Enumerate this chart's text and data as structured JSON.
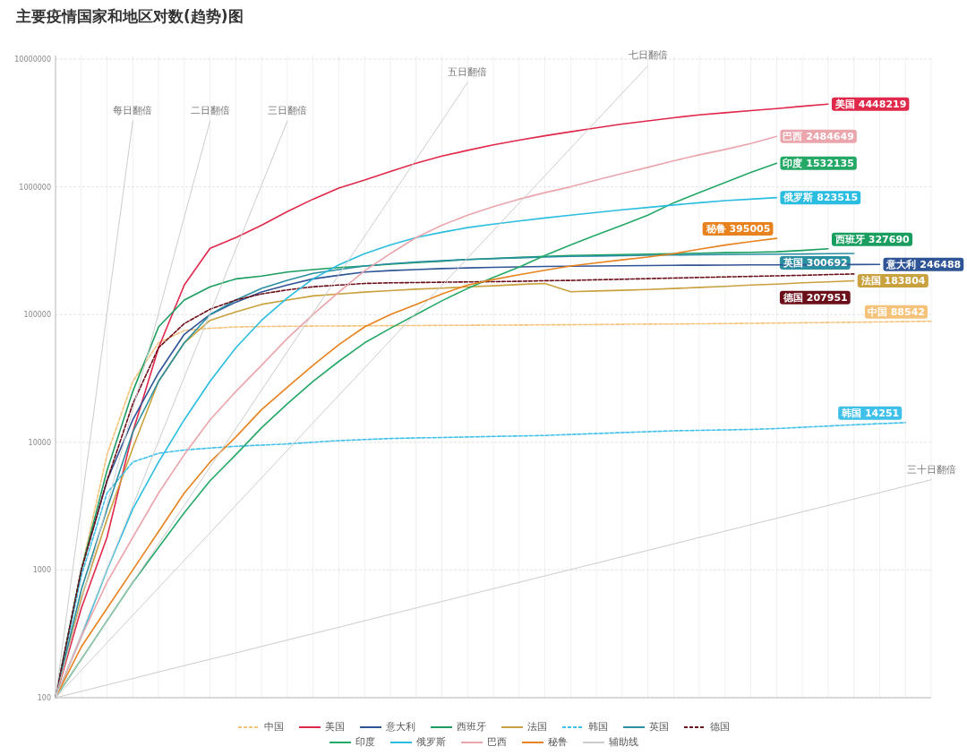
{
  "chart_data": {
    "type": "line",
    "title": "主要疫情国家和地区对数(趋势)图",
    "categories": [
      null,
      null,
      null,
      null,
      null,
      null,
      null,
      null,
      null,
      null,
      null,
      null,
      null,
      null,
      null,
      null,
      null,
      null,
      null,
      null,
      null,
      null,
      null,
      null,
      null,
      null,
      null,
      null,
      null,
      null,
      null,
      null,
      null,
      null,
      null
    ],
    "ylim": [
      100,
      10000000
    ],
    "yticks": [
      100,
      1000,
      10000,
      100000,
      1000000,
      10000000
    ],
    "log": "y",
    "grid": true,
    "legend": "bottom",
    "tick_labels": "y",
    "series": [
      {
        "name": "中国",
        "color": "#f5c27a",
        "line_style": "dashed",
        "values": [
          100,
          1000,
          8000,
          30000,
          60000,
          75000,
          78000,
          80000,
          80500,
          81000,
          81200,
          81400,
          81600,
          81800,
          82000,
          82200,
          82400,
          82600,
          82800,
          83000,
          83200,
          83500,
          83800,
          84100,
          84400,
          84700,
          85000,
          85400,
          85800,
          86200,
          86600,
          87000,
          87500,
          88000,
          88542
        ],
        "value_labels": [
          null,
          null,
          null,
          null,
          null,
          null,
          null,
          null,
          null,
          null,
          null,
          null,
          null,
          null,
          null,
          null,
          null,
          null,
          null,
          null,
          null,
          null,
          null,
          null,
          null,
          null,
          null,
          null,
          null,
          null,
          null,
          null,
          null,
          null,
          "中国 88542"
        ]
      },
      {
        "name": "美国",
        "color": "#e0284b",
        "values": [
          100,
          500,
          1800,
          12000,
          55000,
          170000,
          330000,
          400000,
          500000,
          640000,
          800000,
          980000,
          1130000,
          1320000,
          1530000,
          1740000,
          1930000,
          2130000,
          2320000,
          2510000,
          2700000,
          2900000,
          3100000,
          3280000,
          3470000,
          3660000,
          3800000,
          3950000,
          4100000,
          4280000,
          4448219,
          null,
          null,
          null,
          null
        ],
        "value_labels": [
          null,
          null,
          null,
          null,
          null,
          null,
          null,
          null,
          null,
          null,
          null,
          null,
          null,
          null,
          null,
          null,
          null,
          null,
          null,
          null,
          null,
          null,
          null,
          null,
          null,
          null,
          null,
          null,
          null,
          null,
          "美国 4448219",
          null,
          null,
          null,
          null
        ]
      },
      {
        "name": "意大利",
        "color": "#2f5597",
        "values": [
          100,
          1000,
          5000,
          15000,
          35000,
          70000,
          100000,
          125000,
          150000,
          170000,
          190000,
          203000,
          215000,
          221000,
          225000,
          229000,
          232000,
          234000,
          236000,
          238000,
          239000,
          240000,
          241000,
          242000,
          243000,
          243500,
          244000,
          244500,
          245000,
          245500,
          246000,
          246200,
          246488,
          null,
          null
        ],
        "value_labels": [
          null,
          null,
          null,
          null,
          null,
          null,
          null,
          null,
          null,
          null,
          null,
          null,
          null,
          null,
          null,
          null,
          null,
          null,
          null,
          null,
          null,
          null,
          null,
          null,
          null,
          null,
          null,
          null,
          null,
          null,
          null,
          null,
          "意大利 246488",
          null,
          null
        ]
      },
      {
        "name": "西班牙",
        "color": "#1a9e60",
        "values": [
          100,
          1000,
          6000,
          25000,
          80000,
          130000,
          165000,
          190000,
          200000,
          215000,
          225000,
          233000,
          240000,
          248000,
          255000,
          262000,
          270000,
          275000,
          280000,
          285000,
          290000,
          292000,
          295000,
          297000,
          300000,
          302000,
          305000,
          307000,
          310000,
          318000,
          327690,
          null,
          null,
          null,
          null
        ],
        "value_labels": [
          null,
          null,
          null,
          null,
          null,
          null,
          null,
          null,
          null,
          null,
          null,
          null,
          null,
          null,
          null,
          null,
          null,
          null,
          null,
          null,
          null,
          null,
          null,
          null,
          null,
          null,
          null,
          null,
          null,
          null,
          "西班牙 327690",
          null,
          null,
          null,
          null
        ]
      },
      {
        "name": "法国",
        "color": "#c9a13e",
        "values": [
          100,
          600,
          2500,
          9000,
          30000,
          60000,
          90000,
          105000,
          120000,
          130000,
          140000,
          145000,
          150000,
          154000,
          158000,
          161000,
          165000,
          168000,
          172000,
          175000,
          151000,
          153000,
          155000,
          157000,
          160000,
          163000,
          166000,
          170000,
          173000,
          177000,
          180000,
          183804,
          null,
          null,
          null
        ],
        "value_labels": [
          null,
          null,
          null,
          null,
          null,
          null,
          null,
          null,
          null,
          null,
          null,
          null,
          null,
          null,
          null,
          null,
          null,
          null,
          null,
          null,
          null,
          null,
          null,
          null,
          null,
          null,
          null,
          null,
          null,
          null,
          null,
          "法国 183804",
          null,
          null,
          null
        ]
      },
      {
        "name": "韩国",
        "color": "#3fc0e8",
        "line_style": "dashed",
        "values": [
          100,
          900,
          4000,
          7000,
          8200,
          8700,
          9000,
          9300,
          9500,
          9700,
          10000,
          10300,
          10500,
          10700,
          10800,
          10900,
          11000,
          11100,
          11200,
          11300,
          11500,
          11700,
          11900,
          12100,
          12300,
          12400,
          12500,
          12600,
          12800,
          13100,
          13400,
          13700,
          14000,
          14251,
          null
        ],
        "value_labels": [
          null,
          null,
          null,
          null,
          null,
          null,
          null,
          null,
          null,
          null,
          null,
          null,
          null,
          null,
          null,
          null,
          null,
          null,
          null,
          null,
          null,
          null,
          null,
          null,
          null,
          null,
          null,
          null,
          null,
          null,
          null,
          null,
          null,
          "韩国 14251",
          null
        ]
      },
      {
        "name": "英国",
        "color": "#2a8fa0",
        "values": [
          100,
          700,
          3000,
          12000,
          30000,
          60000,
          100000,
          130000,
          160000,
          185000,
          210000,
          225000,
          240000,
          250000,
          258000,
          264000,
          270000,
          274000,
          278000,
          282000,
          285000,
          287000,
          289000,
          291000,
          292000,
          294000,
          295000,
          296000,
          297000,
          298000,
          299500,
          300692,
          null,
          null,
          null
        ],
        "value_labels": [
          null,
          null,
          null,
          null,
          null,
          null,
          null,
          null,
          null,
          null,
          null,
          null,
          null,
          null,
          null,
          null,
          null,
          null,
          null,
          null,
          null,
          null,
          null,
          null,
          null,
          null,
          null,
          null,
          null,
          null,
          null,
          "英国 300692",
          null,
          null,
          null
        ]
      },
      {
        "name": "德国",
        "color": "#6b0f1a",
        "line_style": "dashed",
        "values": [
          100,
          1000,
          5000,
          20000,
          55000,
          85000,
          110000,
          130000,
          145000,
          156000,
          165000,
          170000,
          175000,
          177000,
          178000,
          179000,
          180000,
          181000,
          182000,
          184000,
          185000,
          187000,
          189000,
          191000,
          193000,
          195000,
          197000,
          199000,
          201000,
          203000,
          205500,
          207951,
          null,
          null,
          null
        ],
        "value_labels": [
          null,
          null,
          null,
          null,
          null,
          null,
          null,
          null,
          null,
          null,
          null,
          null,
          null,
          null,
          null,
          null,
          null,
          null,
          null,
          null,
          null,
          null,
          null,
          null,
          null,
          null,
          null,
          null,
          null,
          null,
          null,
          "德国 207951",
          null,
          null,
          null
        ]
      },
      {
        "name": "印度",
        "color": "#24a866",
        "values": [
          100,
          200,
          400,
          800,
          1500,
          2800,
          5000,
          8000,
          13000,
          20000,
          30000,
          43000,
          60000,
          78000,
          100000,
          128000,
          160000,
          195000,
          235000,
          290000,
          350000,
          420000,
          500000,
          600000,
          750000,
          900000,
          1080000,
          1300000,
          1532135,
          null,
          null,
          null,
          null,
          null,
          null
        ],
        "value_labels": [
          null,
          null,
          null,
          null,
          null,
          null,
          null,
          null,
          null,
          null,
          null,
          null,
          null,
          null,
          null,
          null,
          null,
          null,
          null,
          null,
          null,
          null,
          null,
          null,
          null,
          null,
          null,
          null,
          "印度 1532135",
          null,
          null,
          null,
          null,
          null,
          null
        ]
      },
      {
        "name": "俄罗斯",
        "color": "#2bbde0",
        "values": [
          100,
          300,
          1000,
          3000,
          7000,
          15000,
          30000,
          55000,
          90000,
          135000,
          190000,
          245000,
          300000,
          350000,
          400000,
          440000,
          480000,
          510000,
          540000,
          570000,
          600000,
          630000,
          660000,
          690000,
          720000,
          750000,
          780000,
          800000,
          823515,
          null,
          null,
          null,
          null,
          null,
          null
        ],
        "value_labels": [
          null,
          null,
          null,
          null,
          null,
          null,
          null,
          null,
          null,
          null,
          null,
          null,
          null,
          null,
          null,
          null,
          null,
          null,
          null,
          null,
          null,
          null,
          null,
          null,
          null,
          null,
          null,
          null,
          "俄罗斯 823515",
          null,
          null,
          null,
          null,
          null,
          null
        ]
      },
      {
        "name": "巴西",
        "color": "#eba5ad",
        "values": [
          100,
          300,
          800,
          1800,
          4000,
          8000,
          15000,
          25000,
          40000,
          65000,
          100000,
          150000,
          220000,
          300000,
          400000,
          500000,
          600000,
          700000,
          800000,
          900000,
          1000000,
          1130000,
          1270000,
          1420000,
          1600000,
          1780000,
          1960000,
          2180000,
          2484649,
          null,
          null,
          null,
          null,
          null,
          null
        ],
        "value_labels": [
          null,
          null,
          null,
          null,
          null,
          null,
          null,
          null,
          null,
          null,
          null,
          null,
          null,
          null,
          null,
          null,
          null,
          null,
          null,
          null,
          null,
          null,
          null,
          null,
          null,
          null,
          null,
          null,
          "巴西 2484649",
          null,
          null,
          null,
          null,
          null,
          null
        ]
      },
      {
        "name": "秘鲁",
        "color": "#e8821e",
        "values": [
          100,
          250,
          500,
          1000,
          2000,
          4000,
          7000,
          11000,
          18000,
          27000,
          40000,
          58000,
          80000,
          100000,
          120000,
          145000,
          170000,
          188000,
          205000,
          222000,
          240000,
          254000,
          268000,
          282000,
          300000,
          325000,
          350000,
          372000,
          395005,
          null,
          null,
          null,
          null,
          null,
          null
        ],
        "value_labels": [
          null,
          null,
          null,
          null,
          null,
          null,
          null,
          null,
          null,
          null,
          null,
          null,
          null,
          null,
          null,
          null,
          null,
          null,
          null,
          null,
          null,
          null,
          null,
          null,
          null,
          null,
          null,
          null,
          "秘鲁 395005",
          null,
          null,
          null,
          null,
          null,
          null
        ]
      },
      {
        "name": "辅助线",
        "line_style": "solid",
        "color": "#cccccc",
        "values": [
          100,
          3200,
          102400,
          3276800,
          null,
          null,
          null,
          null,
          null,
          null,
          null,
          null,
          null,
          null,
          null,
          null,
          null,
          null,
          null,
          null,
          null,
          null,
          null,
          null,
          null,
          null,
          null,
          null,
          null,
          null,
          null,
          null,
          null,
          null,
          null
        ],
        "value_labels": [
          null,
          null,
          null,
          "每日翻倍",
          null,
          null,
          null,
          null,
          null,
          null,
          null,
          null,
          null,
          null,
          null,
          null,
          null,
          null,
          null,
          null,
          null,
          null,
          null,
          null,
          null,
          null,
          null,
          null,
          null,
          null,
          null,
          null,
          null,
          null,
          null
        ]
      },
      {
        "line_style": "solid",
        "color": "#cccccc",
        "values": [
          100,
          566,
          3200,
          18100,
          102400,
          579000,
          3276800,
          null,
          null,
          null,
          null,
          null,
          null,
          null,
          null,
          null,
          null,
          null,
          null,
          null,
          null,
          null,
          null,
          null,
          null,
          null,
          null,
          null,
          null,
          null,
          null,
          null,
          null,
          null,
          null
        ],
        "value_labels": [
          null,
          null,
          null,
          null,
          null,
          null,
          "二日翻倍",
          null,
          null,
          null,
          null,
          null,
          null,
          null,
          null,
          null,
          null,
          null,
          null,
          null,
          null,
          null,
          null,
          null,
          null,
          null,
          null,
          null,
          null,
          null,
          null,
          null,
          null,
          null,
          null
        ]
      },
      {
        "line_style": "solid",
        "color": "#cccccc",
        "values": [
          100,
          317,
          1010,
          3200,
          10200,
          32300,
          102400,
          325000,
          1030000,
          3276800,
          null,
          null,
          null,
          null,
          null,
          null,
          null,
          null,
          null,
          null,
          null,
          null,
          null,
          null,
          null,
          null,
          null,
          null,
          null,
          null,
          null,
          null,
          null,
          null,
          null
        ],
        "value_labels": [
          null,
          null,
          null,
          null,
          null,
          null,
          null,
          null,
          null,
          "三日翻倍",
          null,
          null,
          null,
          null,
          null,
          null,
          null,
          null,
          null,
          null,
          null,
          null,
          null,
          null,
          null,
          null,
          null,
          null,
          null,
          null,
          null,
          null,
          null,
          null,
          null
        ]
      },
      {
        "line_style": "solid",
        "color": "#cccccc",
        "values": [
          100,
          200,
          400,
          800,
          1600,
          3200,
          6400,
          12800,
          25600,
          51200,
          102400,
          204800,
          409600,
          819200,
          1638400,
          3276800,
          6553600,
          null,
          null,
          null,
          null,
          null,
          null,
          null,
          null,
          null,
          null,
          null,
          null,
          null,
          null,
          null,
          null,
          null,
          null
        ],
        "value_labels": [
          null,
          null,
          null,
          null,
          null,
          null,
          null,
          null,
          null,
          null,
          null,
          null,
          null,
          null,
          null,
          null,
          "五日翻倍",
          null,
          null,
          null,
          null,
          null,
          null,
          null,
          null,
          null,
          null,
          null,
          null,
          null,
          null,
          null,
          null,
          null,
          null
        ]
      },
      {
        "line_style": "solid",
        "color": "#cccccc",
        "values": [
          100,
          164,
          269,
          442,
          725,
          1190,
          1950,
          3210,
          5260,
          8630,
          14200,
          23300,
          38200,
          62600,
          103000,
          169000,
          277000,
          454000,
          745000,
          1220000,
          2010000,
          3290000,
          5400000,
          8860000,
          null,
          null,
          null,
          null,
          null,
          null,
          null,
          null,
          null,
          null,
          null
        ],
        "value_labels": [
          null,
          null,
          null,
          null,
          null,
          null,
          null,
          null,
          null,
          null,
          null,
          null,
          null,
          null,
          null,
          null,
          null,
          null,
          null,
          null,
          null,
          null,
          null,
          "七日翻倍",
          null,
          null,
          null,
          null,
          null,
          null,
          null,
          null,
          null,
          null,
          null
        ]
      },
      {
        "line_style": "solid",
        "color": "#cccccc",
        "values": [
          100,
          112,
          126,
          141,
          159,
          178,
          200,
          224,
          252,
          283,
          317,
          356,
          400,
          449,
          504,
          566,
          635,
          713,
          800,
          898,
          1008,
          1131,
          1270,
          1425,
          1600,
          1796,
          2016,
          2263,
          2540,
          2851,
          3200,
          3592,
          4032,
          4525,
          5080
        ],
        "value_labels": [
          null,
          null,
          null,
          null,
          null,
          null,
          null,
          null,
          null,
          null,
          null,
          null,
          null,
          null,
          null,
          null,
          null,
          null,
          null,
          null,
          null,
          null,
          null,
          null,
          null,
          null,
          null,
          null,
          null,
          null,
          null,
          null,
          null,
          null,
          "三十日翻倍"
        ]
      }
    ]
  }
}
